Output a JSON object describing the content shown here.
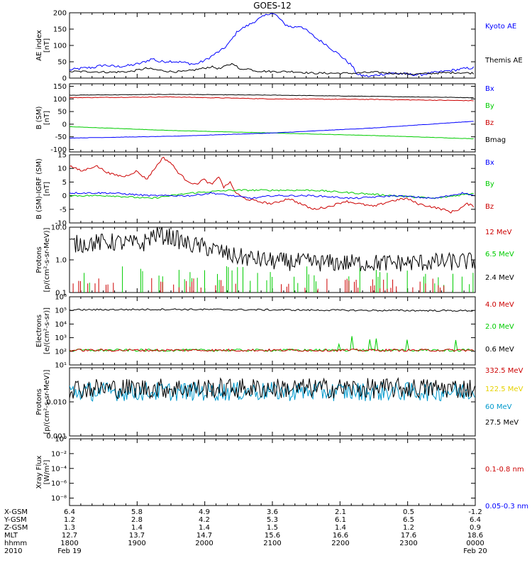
{
  "title": "GOES-12",
  "x_range": [
    "1800",
    "0000"
  ],
  "panels": [
    {
      "key": "ae",
      "ylabel": [
        "AE index",
        "[nT]"
      ],
      "scale": "linear",
      "ylim": [
        0,
        200
      ],
      "yticks": [
        "0",
        "50",
        "100",
        "150",
        "200"
      ],
      "yticks_values": [
        0,
        50,
        100,
        150,
        200
      ],
      "legend": [
        {
          "text": "Kyoto AE",
          "color": "#0000ff"
        },
        {
          "text": "Themis AE",
          "color": "#000000"
        }
      ],
      "series": [
        {
          "name": "Kyoto AE",
          "color": "#0000ff",
          "noise": 4,
          "points": [
            [
              0,
              25
            ],
            [
              6,
              30
            ],
            [
              12,
              33
            ],
            [
              17,
              40
            ],
            [
              23,
              35
            ],
            [
              29,
              38
            ],
            [
              35,
              45
            ],
            [
              41,
              60
            ],
            [
              44,
              50
            ],
            [
              50,
              52
            ],
            [
              56,
              48
            ],
            [
              62,
              42
            ],
            [
              67,
              55
            ],
            [
              72,
              75
            ],
            [
              76,
              90
            ],
            [
              79,
              110
            ],
            [
              83,
              145
            ],
            [
              86,
              155
            ],
            [
              89,
              165
            ],
            [
              93,
              180
            ],
            [
              96,
              190
            ],
            [
              99,
              200
            ],
            [
              102,
              192
            ],
            [
              106,
              165
            ],
            [
              110,
              155
            ],
            [
              114,
              160
            ],
            [
              118,
              140
            ],
            [
              122,
              120
            ],
            [
              126,
              105
            ],
            [
              130,
              85
            ],
            [
              133,
              72
            ],
            [
              136,
              55
            ],
            [
              139,
              40
            ],
            [
              142,
              10
            ],
            [
              148,
              5
            ],
            [
              154,
              12
            ],
            [
              160,
              15
            ],
            [
              166,
              12
            ],
            [
              172,
              10
            ],
            [
              178,
              15
            ],
            [
              184,
              20
            ],
            [
              190,
              25
            ],
            [
              196,
              30
            ],
            [
              200,
              32
            ]
          ]
        },
        {
          "name": "Themis AE",
          "color": "#000000",
          "noise": 3,
          "points": [
            [
              0,
              20
            ],
            [
              10,
              20
            ],
            [
              20,
              18
            ],
            [
              30,
              20
            ],
            [
              38,
              30
            ],
            [
              43,
              25
            ],
            [
              50,
              20
            ],
            [
              57,
              20
            ],
            [
              66,
              30
            ],
            [
              70,
              35
            ],
            [
              74,
              28
            ],
            [
              78,
              40
            ],
            [
              81,
              45
            ],
            [
              84,
              25
            ],
            [
              87,
              30
            ],
            [
              92,
              22
            ],
            [
              100,
              20
            ],
            [
              110,
              20
            ],
            [
              120,
              15
            ],
            [
              130,
              15
            ],
            [
              140,
              15
            ],
            [
              150,
              18
            ],
            [
              160,
              15
            ],
            [
              170,
              12
            ],
            [
              180,
              15
            ],
            [
              190,
              17
            ],
            [
              200,
              15
            ]
          ]
        }
      ]
    },
    {
      "key": "bsm",
      "ylabel": [
        "B (SM)",
        "[nT]"
      ],
      "scale": "linear",
      "ylim": [
        -110,
        160
      ],
      "yticks": [
        "-100",
        "-50",
        "0",
        "50",
        "100",
        "150"
      ],
      "yticks_values": [
        -100,
        -50,
        0,
        50,
        100,
        150
      ],
      "legend": [
        {
          "text": "Bx",
          "color": "#0000ff"
        },
        {
          "text": "By",
          "color": "#00cc00"
        },
        {
          "text": "Bz",
          "color": "#cc0000"
        },
        {
          "text": "Bmag",
          "color": "#000000"
        }
      ],
      "series": [
        {
          "name": "Bmag",
          "color": "#000000",
          "noise": 0.8,
          "points": [
            [
              0,
              115
            ],
            [
              50,
              118
            ],
            [
              100,
              115
            ],
            [
              150,
              110
            ],
            [
              200,
              105
            ]
          ]
        },
        {
          "name": "Bz",
          "color": "#cc0000",
          "noise": 1.2,
          "points": [
            [
              0,
              105
            ],
            [
              50,
              108
            ],
            [
              100,
              100
            ],
            [
              150,
              98
            ],
            [
              200,
              93
            ]
          ]
        },
        {
          "name": "By",
          "color": "#00cc00",
          "noise": 0.6,
          "points": [
            [
              0,
              -10
            ],
            [
              50,
              -25
            ],
            [
              100,
              -35
            ],
            [
              150,
              -45
            ],
            [
              200,
              -58
            ]
          ]
        },
        {
          "name": "Bx",
          "color": "#0000ff",
          "noise": 0.6,
          "points": [
            [
              0,
              -55
            ],
            [
              50,
              -48
            ],
            [
              100,
              -35
            ],
            [
              150,
              -15
            ],
            [
              200,
              12
            ]
          ]
        }
      ]
    },
    {
      "key": "bsmigrf",
      "ylabel": [
        "B (SM)-IGRF (SM)",
        "[nT]"
      ],
      "scale": "linear",
      "ylim": [
        -10,
        15
      ],
      "yticks": [
        "-10",
        "-5",
        "0",
        "5",
        "10",
        "15"
      ],
      "yticks_values": [
        -10,
        -5,
        0,
        5,
        10,
        15
      ],
      "legend": [
        {
          "text": "Bx",
          "color": "#0000ff"
        },
        {
          "text": "By",
          "color": "#00cc00"
        },
        {
          "text": "Bz",
          "color": "#cc0000"
        }
      ],
      "series": [
        {
          "name": "Bz",
          "color": "#cc0000",
          "noise": 0.4,
          "points": [
            [
              0,
              11
            ],
            [
              6,
              9
            ],
            [
              13,
              11
            ],
            [
              20,
              8
            ],
            [
              27,
              7
            ],
            [
              33,
              9
            ],
            [
              38,
              6
            ],
            [
              42,
              10
            ],
            [
              46,
              14
            ],
            [
              50,
              12
            ],
            [
              53,
              9
            ],
            [
              57,
              6
            ],
            [
              62,
              4
            ],
            [
              66,
              6
            ],
            [
              70,
              4
            ],
            [
              74,
              7
            ],
            [
              76,
              3
            ],
            [
              79,
              5
            ],
            [
              82,
              1
            ],
            [
              86,
              -1
            ],
            [
              92,
              -2
            ],
            [
              100,
              -3
            ],
            [
              108,
              -1
            ],
            [
              114,
              -3
            ],
            [
              120,
              -5
            ],
            [
              128,
              -4
            ],
            [
              136,
              -2
            ],
            [
              143,
              -3
            ],
            [
              150,
              -4
            ],
            [
              158,
              -2
            ],
            [
              166,
              -1
            ],
            [
              172,
              -3
            ],
            [
              178,
              -4
            ],
            [
              184,
              -5
            ],
            [
              188,
              -6
            ],
            [
              192,
              -5
            ],
            [
              196,
              -3
            ],
            [
              200,
              -4
            ]
          ]
        },
        {
          "name": "By",
          "color": "#00cc00",
          "noise": 0.3,
          "points": [
            [
              0,
              0
            ],
            [
              20,
              0
            ],
            [
              40,
              -1
            ],
            [
              60,
              1
            ],
            [
              80,
              2
            ],
            [
              100,
              2
            ],
            [
              120,
              2
            ],
            [
              140,
              1
            ],
            [
              160,
              0
            ],
            [
              180,
              -1
            ],
            [
              200,
              1
            ]
          ]
        },
        {
          "name": "Bx",
          "color": "#0000ff",
          "noise": 0.3,
          "points": [
            [
              0,
              1
            ],
            [
              20,
              1
            ],
            [
              40,
              0
            ],
            [
              60,
              0
            ],
            [
              70,
              1
            ],
            [
              80,
              0
            ],
            [
              90,
              -1
            ],
            [
              100,
              0
            ],
            [
              120,
              0
            ],
            [
              140,
              -1
            ],
            [
              160,
              0
            ],
            [
              180,
              -1
            ],
            [
              194,
              1
            ],
            [
              200,
              0
            ]
          ]
        }
      ]
    },
    {
      "key": "protons_low",
      "ylabel": [
        "Protons",
        "[p/(cm²-s-sr-MeV)]"
      ],
      "scale": "log",
      "ylim": [
        0.1,
        10
      ],
      "yticks": [
        "0.1",
        "1.0",
        "10.0"
      ],
      "yticks_values": [
        0.1,
        1.0,
        10.0
      ],
      "legend": [
        {
          "text": "12 MeV",
          "color": "#cc0000"
        },
        {
          "text": "6.5 MeV",
          "color": "#00cc00"
        },
        {
          "text": "2.4 MeV",
          "color": "#000000"
        }
      ],
      "series": [
        {
          "name": "2.4 MeV",
          "color": "#000000",
          "noise": 0.28,
          "spiky": true,
          "points": [
            [
              0,
              3
            ],
            [
              20,
              3.5
            ],
            [
              36,
              3
            ],
            [
              42,
              6
            ],
            [
              50,
              5
            ],
            [
              58,
              3
            ],
            [
              66,
              2.5
            ],
            [
              80,
              1.3
            ],
            [
              100,
              0.9
            ],
            [
              130,
              0.8
            ],
            [
              160,
              0.8
            ],
            [
              200,
              0.9
            ]
          ]
        },
        {
          "name": "6.5 MeV",
          "color": "#00cc00",
          "sparse": true,
          "points": [
            [
              0,
              0.15
            ],
            [
              200,
              0.15
            ]
          ]
        },
        {
          "name": "12 MeV",
          "color": "#cc0000",
          "sparse": true,
          "points": [
            [
              0,
              0.1
            ],
            [
              200,
              0.1
            ]
          ]
        }
      ]
    },
    {
      "key": "electrons",
      "ylabel": [
        "Electrons",
        "[e/(cm²-s-sr)]"
      ],
      "scale": "log",
      "ylim": [
        10,
        1000000
      ],
      "yticks": [
        "10¹",
        "10²",
        "10³",
        "10⁴",
        "10⁵",
        "10⁶"
      ],
      "yticks_values": [
        10,
        100,
        1000,
        10000,
        100000,
        1000000
      ],
      "legend": [
        {
          "text": "4.0 MeV",
          "color": "#cc0000"
        },
        {
          "text": "2.0 MeV",
          "color": "#00cc00"
        },
        {
          "text": "0.6 MeV",
          "color": "#000000"
        }
      ],
      "series": [
        {
          "name": "0.6 MeV",
          "color": "#000000",
          "noise": 0.06,
          "points": [
            [
              0,
              110000
            ],
            [
              50,
              120000
            ],
            [
              100,
              110000
            ],
            [
              150,
              100000
            ],
            [
              200,
              95000
            ]
          ]
        },
        {
          "name": "2.0 MeV",
          "color": "#00cc00",
          "noise": 0.09,
          "bursts": true,
          "points": [
            [
              0,
              120
            ],
            [
              200,
              120
            ]
          ]
        },
        {
          "name": "4.0 MeV",
          "color": "#cc0000",
          "noise": 0.09,
          "points": [
            [
              0,
              120
            ],
            [
              200,
              120
            ]
          ]
        }
      ]
    },
    {
      "key": "protons_high",
      "ylabel": [
        "Protons",
        "[p/(cm²-s-sr-MeV)]"
      ],
      "scale": "log",
      "ylim": [
        0.001,
        0.1
      ],
      "yticks": [
        "0.001",
        "0.010"
      ],
      "yticks_values": [
        0.001,
        0.01
      ],
      "legend": [
        {
          "text": "332.5 MeV",
          "color": "#cc0000"
        },
        {
          "text": "122.5 MeV",
          "color": "#e6d200"
        },
        {
          "text": "60 MeV",
          "color": "#0099cc"
        },
        {
          "text": "27.5 MeV",
          "color": "#000000"
        }
      ],
      "series": [
        {
          "name": "60 MeV",
          "color": "#0099cc",
          "noise": 0.28,
          "spiky": true,
          "points": [
            [
              0,
              0.02
            ],
            [
              200,
              0.02
            ]
          ]
        },
        {
          "name": "27.5 MeV",
          "color": "#000000",
          "noise": 0.3,
          "spiky": true,
          "points": [
            [
              0,
              0.025
            ],
            [
              200,
              0.025
            ]
          ]
        }
      ]
    },
    {
      "key": "xray",
      "ylabel": [
        "Xray Flux",
        "[W/m²]"
      ],
      "scale": "log",
      "ylim": [
        1e-09,
        1
      ],
      "yticks": [
        "10⁻⁸",
        "10⁻⁶",
        "10⁻⁴",
        "10⁻²",
        "10⁰"
      ],
      "yticks_values": [
        1e-08,
        1e-06,
        0.0001,
        0.01,
        1
      ],
      "legend": [
        {
          "text": "0.1-0.8 nm",
          "color": "#cc0000"
        },
        {
          "text": "0.05-0.3 nm",
          "color": "#0000ff"
        }
      ],
      "series": []
    }
  ],
  "orbit": {
    "rows": [
      {
        "label": "X-GSM",
        "values": [
          "6.4",
          "5.8",
          "4.9",
          "3.6",
          "2.1",
          "0.5",
          "-1.2"
        ]
      },
      {
        "label": "Y-GSM",
        "values": [
          "1.2",
          "2.8",
          "4.2",
          "5.3",
          "6.1",
          "6.5",
          "6.4"
        ]
      },
      {
        "label": "Z-GSM",
        "values": [
          "1.3",
          "1.4",
          "1.4",
          "1.5",
          "1.4",
          "1.2",
          "0.9"
        ]
      },
      {
        "label": "MLT",
        "values": [
          "12.7",
          "13.7",
          "14.7",
          "15.6",
          "16.6",
          "17.6",
          "18.6"
        ]
      },
      {
        "label": "hhmm",
        "values": [
          "1800",
          "1900",
          "2000",
          "2100",
          "2200",
          "2300",
          "0000"
        ]
      }
    ],
    "year": "2010",
    "date_start": "Feb 19",
    "date_end": "Feb 20"
  }
}
